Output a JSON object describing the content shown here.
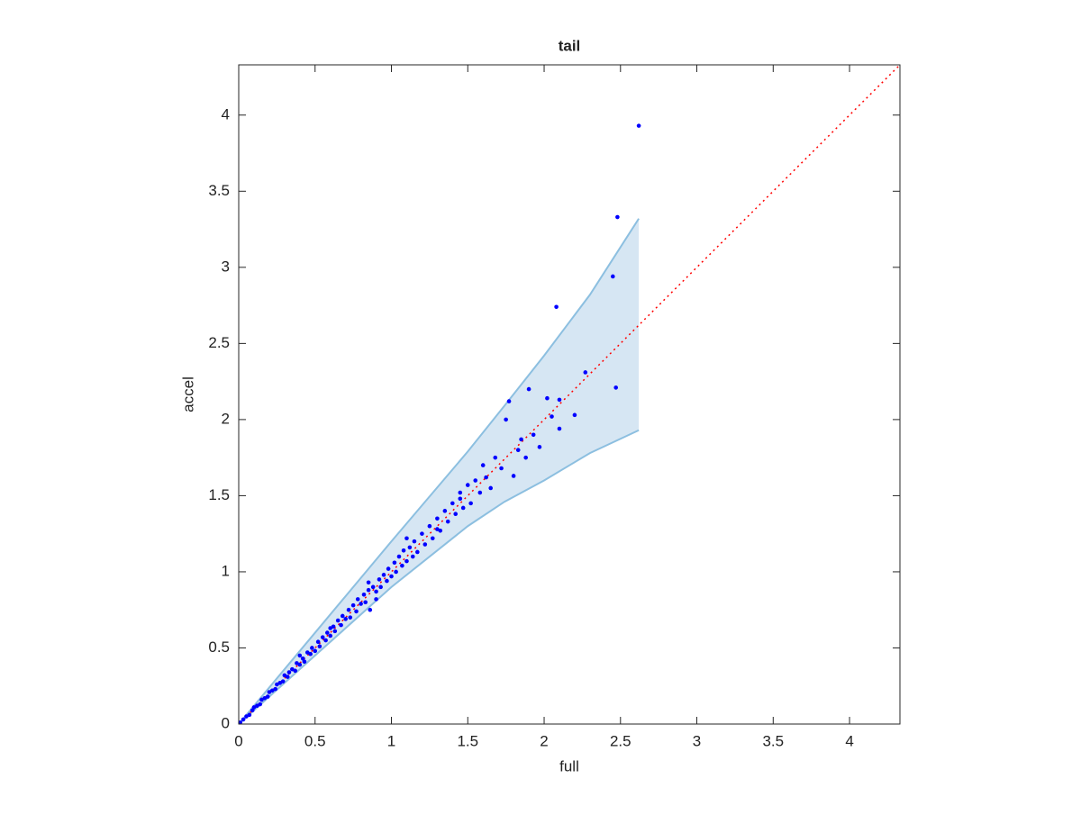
{
  "chart_data": {
    "type": "scatter",
    "title": "tail",
    "x_label": "full",
    "y_label": "accel",
    "xlim": [
      0,
      4.33
    ],
    "ylim": [
      0,
      4.33
    ],
    "xticks": [
      0,
      0.5,
      1,
      1.5,
      2,
      2.5,
      3,
      3.5,
      4
    ],
    "yticks": [
      0,
      0.5,
      1,
      1.5,
      2,
      2.5,
      3,
      3.5,
      4
    ],
    "points": {
      "color": "#0000ff",
      "x": [
        0.01,
        0.03,
        0.05,
        0.07,
        0.09,
        0.1,
        0.12,
        0.14,
        0.15,
        0.17,
        0.19,
        0.2,
        0.22,
        0.24,
        0.25,
        0.27,
        0.29,
        0.3,
        0.32,
        0.33,
        0.35,
        0.37,
        0.38,
        0.4,
        0.42,
        0.43,
        0.45,
        0.47,
        0.48,
        0.5,
        0.52,
        0.53,
        0.55,
        0.57,
        0.58,
        0.6,
        0.62,
        0.63,
        0.65,
        0.67,
        0.68,
        0.7,
        0.72,
        0.73,
        0.75,
        0.77,
        0.78,
        0.8,
        0.82,
        0.83,
        0.85,
        0.86,
        0.88,
        0.9,
        0.92,
        0.93,
        0.95,
        0.97,
        0.98,
        1.0,
        1.02,
        1.03,
        1.05,
        1.07,
        1.08,
        1.1,
        1.12,
        1.14,
        1.15,
        1.17,
        1.2,
        1.22,
        1.25,
        1.27,
        1.3,
        1.32,
        1.35,
        1.37,
        1.4,
        1.42,
        1.45,
        1.47,
        1.5,
        1.52,
        1.55,
        1.58,
        1.6,
        1.62,
        1.65,
        1.68,
        1.72,
        1.75,
        1.77,
        1.8,
        1.83,
        1.85,
        1.88,
        1.9,
        1.93,
        1.97,
        2.02,
        2.05,
        2.1,
        2.1,
        2.08,
        2.2,
        2.27,
        2.45,
        2.47,
        2.48,
        2.62,
        0.4,
        0.6,
        0.85,
        0.9,
        1.1,
        1.3,
        1.45
      ],
      "y": [
        0.01,
        0.03,
        0.05,
        0.06,
        0.09,
        0.11,
        0.12,
        0.13,
        0.16,
        0.17,
        0.18,
        0.21,
        0.22,
        0.23,
        0.26,
        0.27,
        0.28,
        0.32,
        0.31,
        0.34,
        0.36,
        0.35,
        0.4,
        0.39,
        0.43,
        0.41,
        0.47,
        0.46,
        0.5,
        0.48,
        0.54,
        0.51,
        0.57,
        0.55,
        0.6,
        0.58,
        0.64,
        0.61,
        0.68,
        0.65,
        0.71,
        0.69,
        0.75,
        0.7,
        0.78,
        0.74,
        0.82,
        0.79,
        0.85,
        0.8,
        0.88,
        0.75,
        0.9,
        0.87,
        0.95,
        0.9,
        0.98,
        0.94,
        1.02,
        0.97,
        1.06,
        1.0,
        1.1,
        1.04,
        1.14,
        1.07,
        1.16,
        1.1,
        1.2,
        1.13,
        1.25,
        1.18,
        1.3,
        1.22,
        1.35,
        1.27,
        1.4,
        1.33,
        1.45,
        1.38,
        1.52,
        1.42,
        1.57,
        1.45,
        1.6,
        1.52,
        1.7,
        1.62,
        1.55,
        1.75,
        1.68,
        2.0,
        2.12,
        1.63,
        1.8,
        1.87,
        1.75,
        2.2,
        1.9,
        1.82,
        2.14,
        2.02,
        2.13,
        1.94,
        2.74,
        2.03,
        2.31,
        2.94,
        2.21,
        3.33,
        3.93,
        0.45,
        0.63,
        0.93,
        0.82,
        1.22,
        1.28,
        1.48
      ]
    },
    "band": {
      "fill": "#d6e6f3",
      "color": "#8cbfe0",
      "x": [
        0,
        0.5,
        1,
        1.5,
        1.74,
        2,
        2.3,
        2.62
      ],
      "upper": [
        0,
        0.6,
        1.2,
        1.79,
        2.09,
        2.42,
        2.82,
        3.32
      ],
      "lower": [
        0,
        0.45,
        0.9,
        1.3,
        1.46,
        1.6,
        1.78,
        1.93
      ]
    },
    "reference_line": {
      "color": "#ff0000",
      "x": [
        0,
        4.33
      ],
      "y": [
        0,
        4.33
      ]
    }
  }
}
